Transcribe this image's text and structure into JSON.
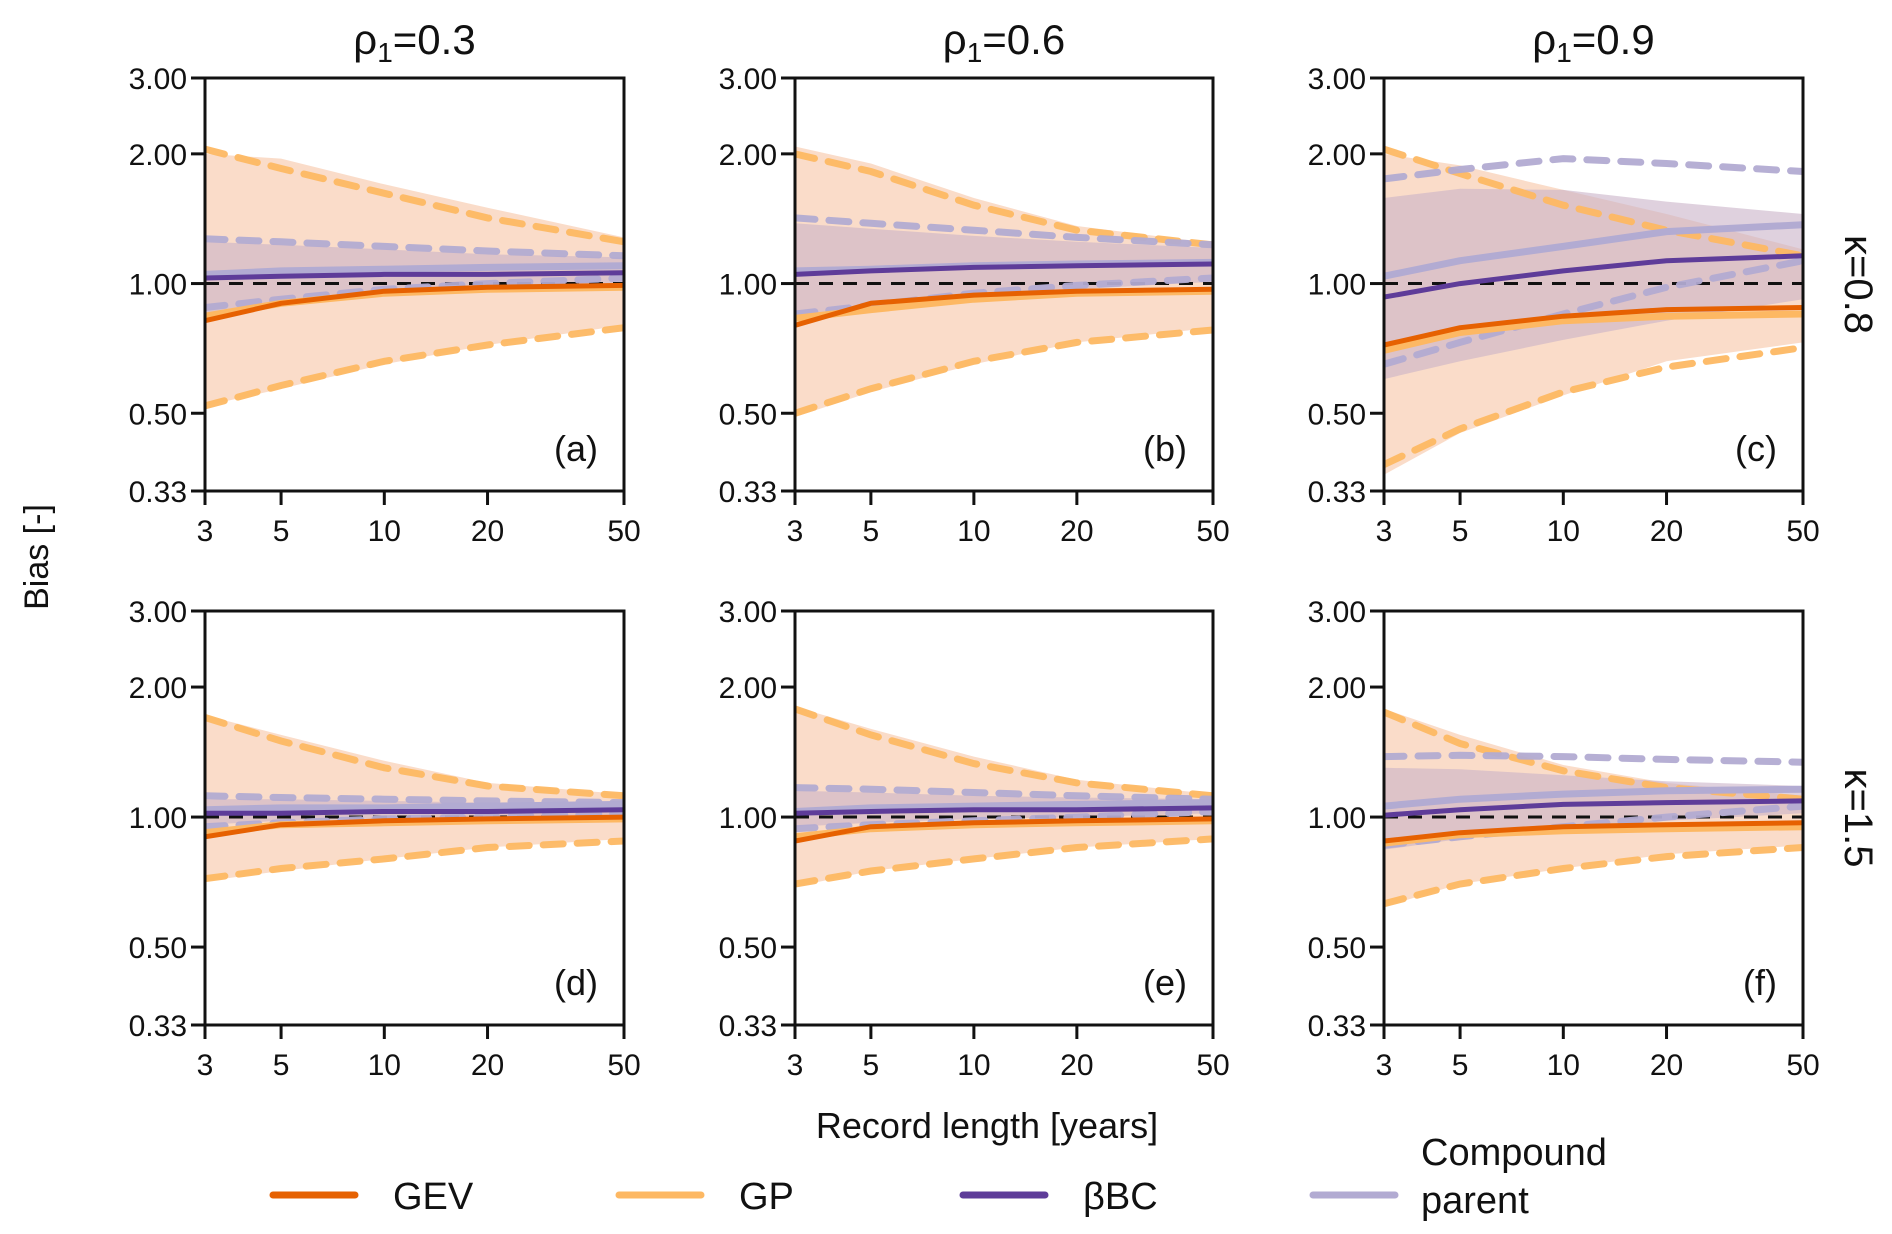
{
  "chart_data": {
    "type": "line",
    "figure": {
      "ylabel": "Bias [-]",
      "xlabel": "Record length [years]",
      "x_scale": "log",
      "y_scale": "log",
      "xlim": [
        3,
        50
      ],
      "ylim": [
        0.33,
        3.0
      ],
      "x_ticks": [
        3,
        5,
        10,
        20,
        50
      ],
      "x_tick_labels": [
        "3",
        "5",
        "10",
        "20",
        "50"
      ],
      "y_ticks": [
        0.33,
        0.5,
        1.0,
        2.0,
        3.0
      ],
      "y_tick_labels": [
        "0.33",
        "0.50",
        "1.00",
        "2.00",
        "3.00"
      ],
      "reference_line": 1.0,
      "column_titles": [
        {
          "symbol": "ρ",
          "subscript": "1",
          "value": "=0.3"
        },
        {
          "symbol": "ρ",
          "subscript": "1",
          "value": "=0.6"
        },
        {
          "symbol": "ρ",
          "subscript": "1",
          "value": "=0.9"
        }
      ],
      "row_labels": [
        "κ=0.8",
        "κ=1.5"
      ],
      "legend_placement": "bottom",
      "legend": [
        {
          "key": "GEV",
          "label": "GEV",
          "color": "#e66101"
        },
        {
          "key": "GP",
          "label": "GP",
          "color": "#fdb863"
        },
        {
          "key": "bBC",
          "label": "βBC",
          "color": "#5e3c99"
        },
        {
          "key": "CP",
          "label_lines": [
            "Compound",
            "parent"
          ],
          "color": "#b2abd2"
        }
      ],
      "band_colors": {
        "GP": "#f9d6c0",
        "CP": "#c9b3c8"
      }
    },
    "x": [
      3,
      5,
      10,
      20,
      50
    ],
    "panels": [
      {
        "label": "(a)",
        "row": 0,
        "col": 0,
        "series": {
          "GEV": [
            0.82,
            0.9,
            0.96,
            0.98,
            0.99
          ],
          "GP": [
            0.84,
            0.9,
            0.95,
            0.97,
            0.98
          ],
          "bBC": [
            1.03,
            1.04,
            1.05,
            1.05,
            1.06
          ],
          "CP": [
            1.05,
            1.07,
            1.08,
            1.09,
            1.1
          ]
        },
        "GP_dashed_upper": [
          2.05,
          1.85,
          1.62,
          1.42,
          1.25
        ],
        "GP_dashed_lower": [
          0.52,
          0.58,
          0.66,
          0.72,
          0.79
        ],
        "GP_band_upper": [
          2.0,
          1.95,
          1.7,
          1.5,
          1.28
        ],
        "GP_band_lower": [
          0.52,
          0.57,
          0.65,
          0.72,
          0.8
        ],
        "CP_dashed_upper": [
          1.27,
          1.25,
          1.22,
          1.19,
          1.16
        ],
        "CP_dashed_lower": [
          0.88,
          0.92,
          0.97,
          1.0,
          1.03
        ],
        "CP_band_upper": [
          1.25,
          1.23,
          1.2,
          1.17,
          1.15
        ],
        "CP_band_lower": [
          0.85,
          0.9,
          0.95,
          0.98,
          1.0
        ]
      },
      {
        "label": "(b)",
        "row": 0,
        "col": 1,
        "series": {
          "GEV": [
            0.8,
            0.9,
            0.94,
            0.96,
            0.97
          ],
          "GP": [
            0.83,
            0.87,
            0.92,
            0.95,
            0.96
          ],
          "bBC": [
            1.05,
            1.07,
            1.09,
            1.1,
            1.11
          ],
          "CP": [
            1.07,
            1.08,
            1.1,
            1.11,
            1.12
          ]
        },
        "GP_dashed_upper": [
          2.0,
          1.82,
          1.52,
          1.33,
          1.23
        ],
        "GP_dashed_lower": [
          0.5,
          0.57,
          0.66,
          0.73,
          0.78
        ],
        "GP_band_upper": [
          2.08,
          1.9,
          1.58,
          1.36,
          1.24
        ],
        "GP_band_lower": [
          0.49,
          0.56,
          0.65,
          0.73,
          0.79
        ],
        "CP_dashed_upper": [
          1.42,
          1.38,
          1.33,
          1.28,
          1.23
        ],
        "CP_dashed_lower": [
          0.85,
          0.89,
          0.95,
          0.99,
          1.03
        ],
        "CP_band_upper": [
          1.38,
          1.34,
          1.29,
          1.25,
          1.21
        ],
        "CP_band_lower": [
          0.82,
          0.87,
          0.93,
          0.97,
          1.01
        ]
      },
      {
        "label": "(c)",
        "row": 0,
        "col": 2,
        "series": {
          "GEV": [
            0.72,
            0.79,
            0.84,
            0.87,
            0.88
          ],
          "GP": [
            0.7,
            0.77,
            0.82,
            0.84,
            0.85
          ],
          "bBC": [
            0.93,
            1.0,
            1.07,
            1.13,
            1.16
          ],
          "CP": [
            1.04,
            1.13,
            1.22,
            1.32,
            1.37
          ]
        },
        "GP_dashed_upper": [
          2.05,
          1.8,
          1.52,
          1.33,
          1.16
        ],
        "GP_dashed_lower": [
          0.38,
          0.46,
          0.56,
          0.64,
          0.71
        ],
        "GP_band_upper": [
          2.0,
          1.88,
          1.65,
          1.45,
          1.2
        ],
        "GP_band_lower": [
          0.36,
          0.45,
          0.55,
          0.66,
          0.73
        ],
        "CP_dashed_upper": [
          1.75,
          1.84,
          1.95,
          1.9,
          1.82
        ],
        "CP_dashed_lower": [
          0.65,
          0.73,
          0.85,
          0.98,
          1.13
        ],
        "CP_band_upper": [
          1.58,
          1.66,
          1.65,
          1.55,
          1.45
        ],
        "CP_band_lower": [
          0.6,
          0.66,
          0.74,
          0.82,
          0.92
        ]
      },
      {
        "label": "(d)",
        "row": 1,
        "col": 0,
        "series": {
          "GEV": [
            0.9,
            0.96,
            0.98,
            0.99,
            1.0
          ],
          "GP": [
            0.92,
            0.96,
            0.97,
            0.98,
            0.99
          ],
          "bBC": [
            1.02,
            1.02,
            1.03,
            1.03,
            1.04
          ],
          "CP": [
            1.04,
            1.05,
            1.05,
            1.06,
            1.07
          ]
        },
        "GP_dashed_upper": [
          1.7,
          1.5,
          1.3,
          1.18,
          1.12
        ],
        "GP_dashed_lower": [
          0.72,
          0.76,
          0.8,
          0.85,
          0.88
        ],
        "GP_band_upper": [
          1.72,
          1.55,
          1.35,
          1.2,
          1.13
        ],
        "GP_band_lower": [
          0.71,
          0.75,
          0.8,
          0.85,
          0.89
        ],
        "CP_dashed_upper": [
          1.12,
          1.11,
          1.1,
          1.09,
          1.08
        ],
        "CP_dashed_lower": [
          0.95,
          0.97,
          0.99,
          1.0,
          1.02
        ],
        "CP_band_upper": [
          1.1,
          1.1,
          1.09,
          1.08,
          1.08
        ],
        "CP_band_lower": [
          0.96,
          0.98,
          0.99,
          1.0,
          1.01
        ]
      },
      {
        "label": "(e)",
        "row": 1,
        "col": 1,
        "series": {
          "GEV": [
            0.88,
            0.95,
            0.97,
            0.98,
            0.99
          ],
          "GP": [
            0.9,
            0.94,
            0.96,
            0.97,
            0.98
          ],
          "bBC": [
            1.02,
            1.03,
            1.04,
            1.04,
            1.05
          ],
          "CP": [
            1.03,
            1.05,
            1.06,
            1.07,
            1.08
          ]
        },
        "GP_dashed_upper": [
          1.78,
          1.55,
          1.33,
          1.2,
          1.12
        ],
        "GP_dashed_lower": [
          0.7,
          0.75,
          0.8,
          0.85,
          0.89
        ],
        "GP_band_upper": [
          1.8,
          1.6,
          1.38,
          1.22,
          1.13
        ],
        "GP_band_lower": [
          0.69,
          0.75,
          0.8,
          0.85,
          0.89
        ],
        "CP_dashed_upper": [
          1.17,
          1.16,
          1.14,
          1.12,
          1.1
        ],
        "CP_dashed_lower": [
          0.94,
          0.96,
          0.98,
          1.0,
          1.03
        ],
        "CP_band_upper": [
          1.15,
          1.14,
          1.12,
          1.11,
          1.1
        ],
        "CP_band_lower": [
          0.95,
          0.97,
          0.99,
          1.0,
          1.02
        ]
      },
      {
        "label": "(f)",
        "row": 1,
        "col": 2,
        "series": {
          "GEV": [
            0.88,
            0.92,
            0.95,
            0.96,
            0.97
          ],
          "GP": [
            0.87,
            0.91,
            0.93,
            0.94,
            0.95
          ],
          "bBC": [
            1.01,
            1.04,
            1.07,
            1.08,
            1.09
          ],
          "CP": [
            1.06,
            1.1,
            1.13,
            1.15,
            1.16
          ]
        },
        "GP_dashed_upper": [
          1.75,
          1.48,
          1.28,
          1.17,
          1.1
        ],
        "GP_dashed_lower": [
          0.63,
          0.7,
          0.76,
          0.81,
          0.85
        ],
        "GP_band_upper": [
          1.78,
          1.55,
          1.32,
          1.2,
          1.12
        ],
        "GP_band_lower": [
          0.62,
          0.7,
          0.76,
          0.82,
          0.86
        ],
        "CP_dashed_upper": [
          1.38,
          1.39,
          1.38,
          1.36,
          1.34
        ],
        "CP_dashed_lower": [
          0.86,
          0.9,
          0.95,
          1.0,
          1.06
        ],
        "CP_band_upper": [
          1.3,
          1.29,
          1.25,
          1.21,
          1.18
        ],
        "CP_band_lower": [
          0.84,
          0.89,
          0.94,
          0.98,
          1.02
        ]
      }
    ]
  }
}
